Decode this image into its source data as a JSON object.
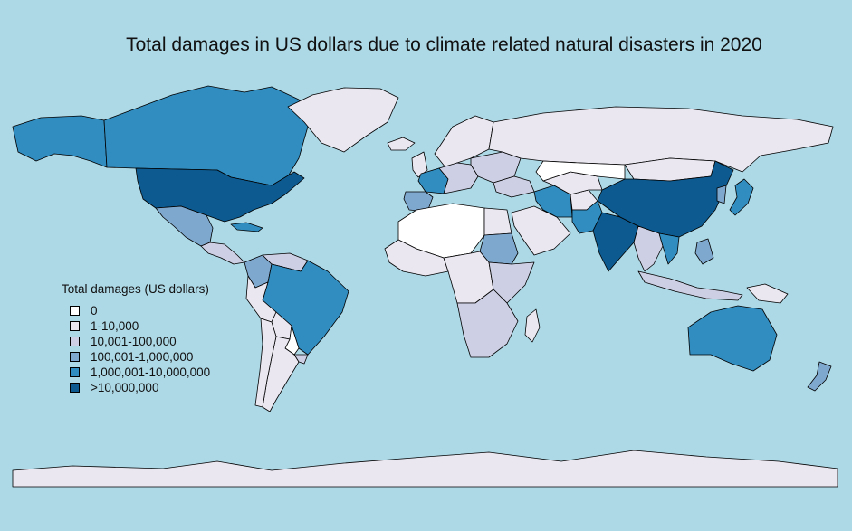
{
  "title": "Total damages in US dollars due to climate related natural disasters in 2020",
  "colors": {
    "ocean": "#add8e6",
    "border": "#000000",
    "bins": [
      "#ffffff",
      "#eae7f1",
      "#cdd0e5",
      "#7fa8cf",
      "#318dc0",
      "#0c5a8f"
    ]
  },
  "legend": {
    "title": "Total damages (US dollars)",
    "items": [
      {
        "label": "0",
        "bin": 0
      },
      {
        "label": "1-10,000",
        "bin": 1
      },
      {
        "label": "10,001-100,000",
        "bin": 2
      },
      {
        "label": "100,001-1,000,000",
        "bin": 3
      },
      {
        "label": "1,000,001-10,000,000",
        "bin": 4
      },
      {
        "label": ">10,000,000",
        "bin": 5
      }
    ]
  },
  "regions": [
    {
      "name": "alaska",
      "bin": 4
    },
    {
      "name": "canada",
      "bin": 4
    },
    {
      "name": "greenland",
      "bin": 1
    },
    {
      "name": "usa",
      "bin": 5
    },
    {
      "name": "mexico",
      "bin": 3
    },
    {
      "name": "central-america",
      "bin": 2
    },
    {
      "name": "cuba",
      "bin": 4
    },
    {
      "name": "colombia",
      "bin": 3
    },
    {
      "name": "venezuela",
      "bin": 2
    },
    {
      "name": "brazil",
      "bin": 4
    },
    {
      "name": "peru",
      "bin": 1
    },
    {
      "name": "bolivia",
      "bin": 1
    },
    {
      "name": "paraguay",
      "bin": 0
    },
    {
      "name": "argentina",
      "bin": 1
    },
    {
      "name": "chile",
      "bin": 1
    },
    {
      "name": "uruguay",
      "bin": 2
    },
    {
      "name": "iceland",
      "bin": 1
    },
    {
      "name": "uk",
      "bin": 1
    },
    {
      "name": "scandinavia",
      "bin": 1
    },
    {
      "name": "france",
      "bin": 4
    },
    {
      "name": "iberia",
      "bin": 3
    },
    {
      "name": "central-europe",
      "bin": 2
    },
    {
      "name": "eastern-europe",
      "bin": 2
    },
    {
      "name": "russia",
      "bin": 1
    },
    {
      "name": "turkey",
      "bin": 2
    },
    {
      "name": "north-africa",
      "bin": 0
    },
    {
      "name": "egypt",
      "bin": 1
    },
    {
      "name": "sudan",
      "bin": 3
    },
    {
      "name": "west-africa",
      "bin": 1
    },
    {
      "name": "central-africa",
      "bin": 1
    },
    {
      "name": "east-africa",
      "bin": 2
    },
    {
      "name": "southern-africa",
      "bin": 2
    },
    {
      "name": "madagascar",
      "bin": 1
    },
    {
      "name": "arabia",
      "bin": 1
    },
    {
      "name": "iran",
      "bin": 4
    },
    {
      "name": "pakistan",
      "bin": 4
    },
    {
      "name": "afghanistan",
      "bin": 1
    },
    {
      "name": "central-asia",
      "bin": 1
    },
    {
      "name": "kazakhstan",
      "bin": 0
    },
    {
      "name": "india",
      "bin": 5
    },
    {
      "name": "china",
      "bin": 5
    },
    {
      "name": "mongolia",
      "bin": 1
    },
    {
      "name": "korea",
      "bin": 3
    },
    {
      "name": "japan",
      "bin": 4
    },
    {
      "name": "southeast-asia",
      "bin": 2
    },
    {
      "name": "vietnam",
      "bin": 4
    },
    {
      "name": "philippines",
      "bin": 3
    },
    {
      "name": "indonesia",
      "bin": 2
    },
    {
      "name": "papua",
      "bin": 1
    },
    {
      "name": "australia",
      "bin": 4
    },
    {
      "name": "new-zealand",
      "bin": 3
    },
    {
      "name": "antarctica",
      "bin": 1
    }
  ]
}
